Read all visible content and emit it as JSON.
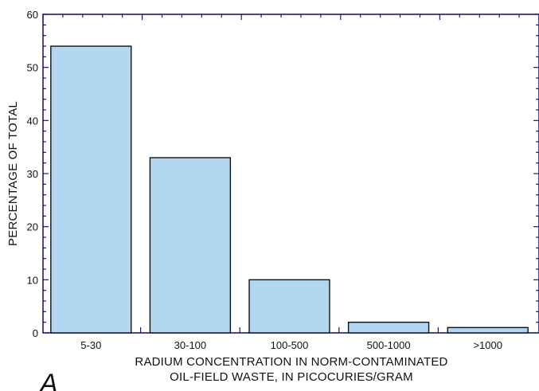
{
  "chart_data": {
    "type": "bar",
    "categories": [
      "5-30",
      "30-100",
      "100-500",
      "500-1000",
      ">1000"
    ],
    "values": [
      54,
      33,
      10,
      2,
      1
    ],
    "xlabel_lines": [
      "RADIUM CONCENTRATION IN NORM-CONTAMINATED",
      "OIL-FIELD WASTE, IN PICOCURIES/GRAM"
    ],
    "ylabel": "PERCENTAGE OF TOTAL",
    "ylim": [
      0,
      60
    ],
    "yticks_major": [
      0,
      10,
      20,
      30,
      40,
      50,
      60
    ],
    "grid": false,
    "colors": {
      "bar_fill": "#b3d7f1",
      "bar_edge": "#111111",
      "axis": "#1a1a7a"
    }
  },
  "panel_label": "A"
}
